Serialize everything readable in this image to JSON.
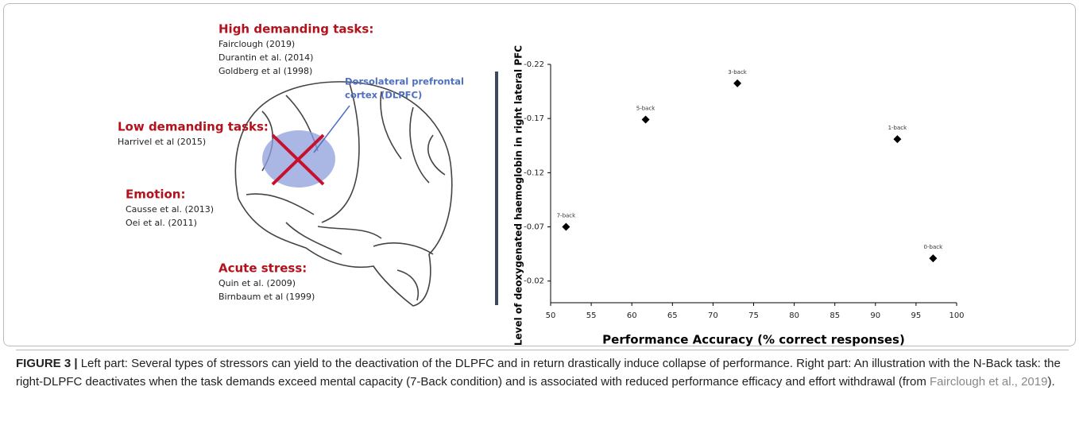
{
  "chart_data": {
    "type": "scatter",
    "xlabel": "Performance Accuracy (% correct responses)",
    "ylabel": "Level of deoxygenated haemoglobin in right lateral PFC",
    "x": [
      51.9,
      61.7,
      73.0,
      92.7,
      97.1
    ],
    "values": [
      -0.07,
      -0.169,
      -0.2025,
      -0.151,
      -0.041
    ],
    "point_labels": [
      "7-back",
      "5-back",
      "3-back",
      "1-back",
      "0-back"
    ],
    "color": "#000000",
    "xlim": [
      50,
      100
    ],
    "xticks": [
      50,
      55,
      60,
      65,
      70,
      75,
      80,
      85,
      90,
      95,
      100
    ],
    "ylim": [
      0,
      -0.22
    ],
    "yticks": [
      -0.22,
      -0.17,
      -0.12,
      -0.07,
      -0.02
    ]
  },
  "left_panel": {
    "dlpfc_label": [
      "Dorsolateral prefrontal",
      "cortex (DLPFC)"
    ],
    "groups": [
      {
        "title": "High demanding tasks:",
        "refs": [
          "Fairclough (2019)",
          "Durantin et al. (2014)",
          "Goldberg et al  (1998)"
        ]
      },
      {
        "title": "Low demanding tasks:",
        "refs": [
          "Harrivel et al  (2015)"
        ]
      },
      {
        "title": "Emotion:",
        "refs": [
          "Causse et al. (2013)",
          "Oei et al. (2011)"
        ]
      },
      {
        "title": "Acute stress:",
        "refs": [
          "Quin et  al. (2009)",
          "Birnbaum et al (1999)"
        ]
      }
    ]
  },
  "caption": {
    "label": "FIGURE 3 |",
    "text": " Left part: Several types of stressors can yield to the deactivation of the DLPFC and in return drastically induce collapse of performance. Right part: An illustration with the N-Back task: the right-DLPFC deactivates when the task demands exceed mental capacity (7-Back condition) and is associated with reduced performance efficacy and effort withdrawal (from ",
    "link": "Fairclough et al., 2019",
    "end": ")."
  }
}
